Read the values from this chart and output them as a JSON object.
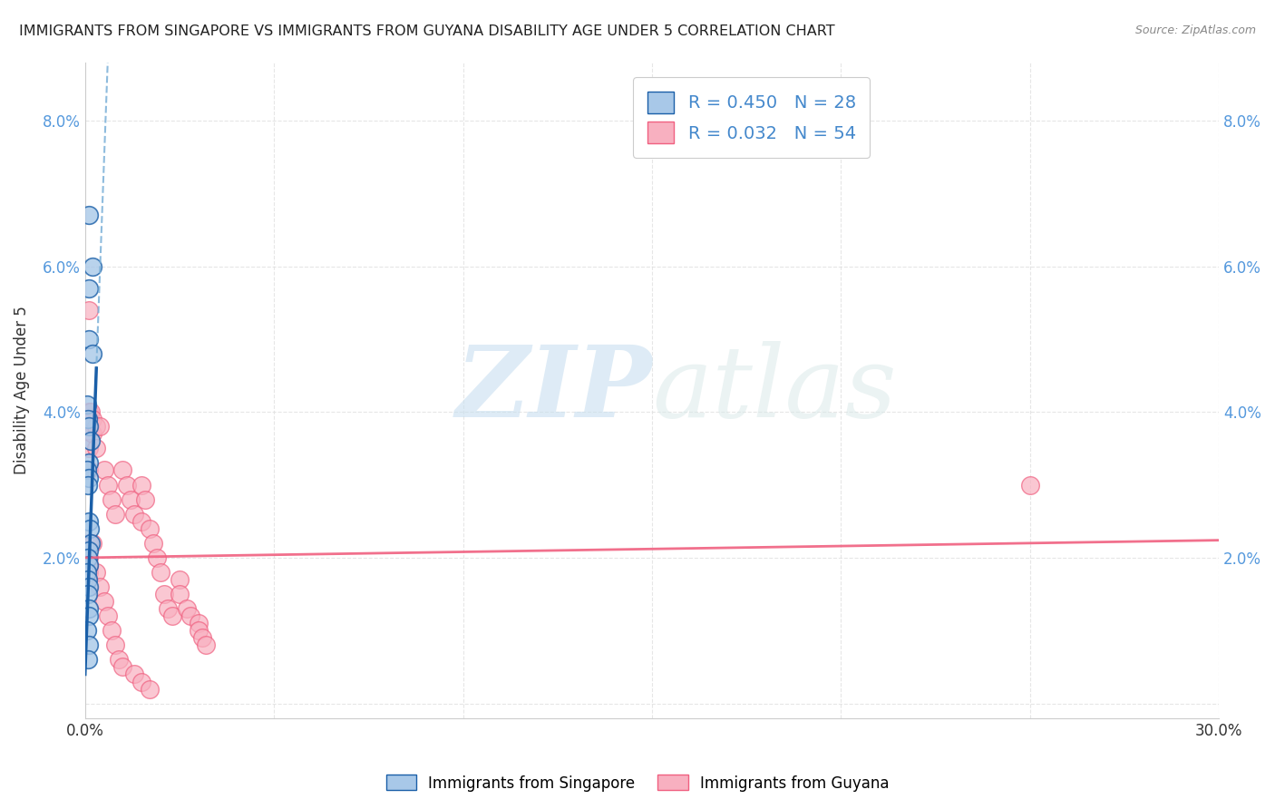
{
  "title": "IMMIGRANTS FROM SINGAPORE VS IMMIGRANTS FROM GUYANA DISABILITY AGE UNDER 5 CORRELATION CHART",
  "source": "Source: ZipAtlas.com",
  "ylabel": "Disability Age Under 5",
  "xlim": [
    0,
    0.3
  ],
  "ylim": [
    -0.002,
    0.088
  ],
  "xticks": [
    0.0,
    0.05,
    0.1,
    0.15,
    0.2,
    0.25,
    0.3
  ],
  "yticks": [
    0.0,
    0.02,
    0.04,
    0.06,
    0.08
  ],
  "xtick_labels": [
    "0.0%",
    "",
    "",
    "",
    "",
    "",
    "30.0%"
  ],
  "ytick_labels": [
    "",
    "2.0%",
    "4.0%",
    "6.0%",
    "8.0%"
  ],
  "singapore_R": 0.45,
  "singapore_N": 28,
  "guyana_R": 0.032,
  "guyana_N": 54,
  "singapore_color": "#a8c8e8",
  "guyana_color": "#f8b0c0",
  "singapore_line_color": "#1a5fa8",
  "guyana_line_color": "#f06080",
  "singapore_x": [
    0.001,
    0.002,
    0.001,
    0.001,
    0.002,
    0.0005,
    0.0008,
    0.001,
    0.0015,
    0.001,
    0.0005,
    0.001,
    0.0008,
    0.001,
    0.0012,
    0.0015,
    0.001,
    0.0008,
    0.001,
    0.0006,
    0.0008,
    0.001,
    0.0007,
    0.0009,
    0.001,
    0.0005,
    0.001,
    0.0008
  ],
  "singapore_y": [
    0.067,
    0.06,
    0.057,
    0.05,
    0.048,
    0.041,
    0.039,
    0.038,
    0.036,
    0.033,
    0.032,
    0.031,
    0.03,
    0.025,
    0.024,
    0.022,
    0.021,
    0.02,
    0.019,
    0.018,
    0.017,
    0.016,
    0.015,
    0.013,
    0.012,
    0.01,
    0.008,
    0.006
  ],
  "guyana_x": [
    0.001,
    0.001,
    0.001,
    0.001,
    0.001,
    0.0015,
    0.002,
    0.002,
    0.003,
    0.003,
    0.004,
    0.005,
    0.006,
    0.007,
    0.008,
    0.01,
    0.011,
    0.012,
    0.013,
    0.015,
    0.015,
    0.016,
    0.017,
    0.018,
    0.019,
    0.02,
    0.021,
    0.022,
    0.023,
    0.025,
    0.025,
    0.027,
    0.028,
    0.03,
    0.03,
    0.031,
    0.032,
    0.001,
    0.001,
    0.001,
    0.002,
    0.003,
    0.004,
    0.005,
    0.006,
    0.007,
    0.008,
    0.009,
    0.01,
    0.013,
    0.015,
    0.017,
    0.25,
    0.001
  ],
  "guyana_y": [
    0.054,
    0.04,
    0.038,
    0.035,
    0.032,
    0.04,
    0.039,
    0.037,
    0.038,
    0.035,
    0.038,
    0.032,
    0.03,
    0.028,
    0.026,
    0.032,
    0.03,
    0.028,
    0.026,
    0.03,
    0.025,
    0.028,
    0.024,
    0.022,
    0.02,
    0.018,
    0.015,
    0.013,
    0.012,
    0.017,
    0.015,
    0.013,
    0.012,
    0.011,
    0.01,
    0.009,
    0.008,
    0.022,
    0.02,
    0.018,
    0.022,
    0.018,
    0.016,
    0.014,
    0.012,
    0.01,
    0.008,
    0.006,
    0.005,
    0.004,
    0.003,
    0.002,
    0.03,
    0.019
  ],
  "sg_reg_slope": 14.0,
  "sg_reg_intercept": 0.004,
  "gy_reg_slope": 0.008,
  "gy_reg_intercept": 0.02,
  "watermark_zip": "ZIP",
  "watermark_atlas": "atlas",
  "background_color": "#ffffff",
  "grid_color": "#e0e0e0"
}
